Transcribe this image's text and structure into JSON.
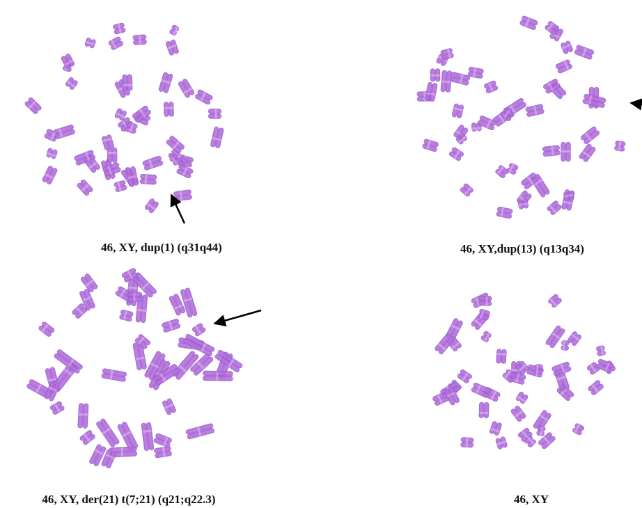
{
  "panels": [
    {
      "caption": "46, XY, dup(1) (q31q44)"
    },
    {
      "caption": "46, XY,dup(13) (q13q34)"
    },
    {
      "caption": "46, XY, der(21) t(7;21) (q21;q22.3)"
    },
    {
      "caption": "46, XY"
    }
  ]
}
